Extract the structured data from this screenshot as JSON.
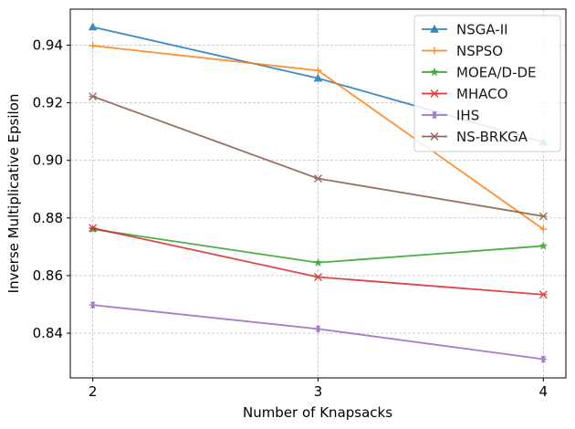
{
  "chart_data": {
    "type": "line",
    "title": "",
    "xlabel": "Number of Knapsacks",
    "ylabel": "Inverse Multiplicative Epsilon",
    "x": [
      2,
      3,
      4
    ],
    "x_ticks": [
      "2",
      "3",
      "4"
    ],
    "xlim": [
      1.9,
      4.1
    ],
    "ylim": [
      0.8245,
      0.9525
    ],
    "y_ticks": [
      0.84,
      0.86,
      0.88,
      0.9,
      0.92,
      0.94
    ],
    "y_tick_labels": [
      "0.84",
      "0.86",
      "0.88",
      "0.90",
      "0.92",
      "0.94"
    ],
    "grid": true,
    "legend_position": "top-right",
    "series": [
      {
        "name": "NSGA-II",
        "values": [
          0.9463,
          0.9285,
          0.9063
        ],
        "color": "#1f77b4",
        "marker": "tri-up"
      },
      {
        "name": "NSPSO",
        "values": [
          0.9398,
          0.9312,
          0.8761
        ],
        "color": "#ff7f0e",
        "marker": "plus"
      },
      {
        "name": "MOEA/D-DE",
        "values": [
          0.8761,
          0.8645,
          0.8703
        ],
        "color": "#2ca02c",
        "marker": "star"
      },
      {
        "name": "MHACO",
        "values": [
          0.8765,
          0.8595,
          0.8534
        ],
        "color": "#d62728",
        "marker": "x"
      },
      {
        "name": "IHS",
        "values": [
          0.8498,
          0.8415,
          0.831
        ],
        "color": "#9467bd",
        "marker": "asterisk"
      },
      {
        "name": "NS-BRKGA",
        "values": [
          0.9222,
          0.8937,
          0.8806
        ],
        "color": "#8c564b",
        "marker": "x"
      }
    ]
  }
}
